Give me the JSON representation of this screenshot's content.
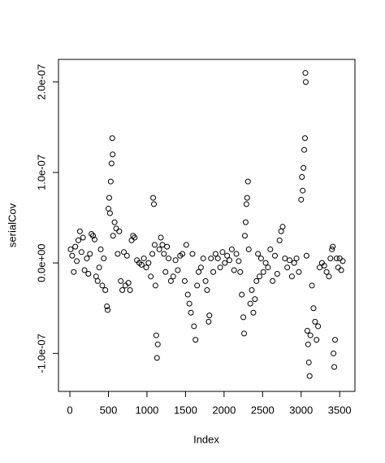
{
  "chart_data": {
    "type": "scatter",
    "x_label": "Index",
    "y_label": "serialCov",
    "xlim": [
      -148,
      3698
    ],
    "ylim": [
      -1.42e-07,
      2.25e-07
    ],
    "xticks": [
      0,
      500,
      1000,
      1500,
      2000,
      2500,
      3000,
      3500
    ],
    "yticks": [
      {
        "value": -1e-07,
        "label": "-1.0e-07"
      },
      {
        "value": 0,
        "label": "0.0e+00"
      },
      {
        "value": 1e-07,
        "label": "1.0e-07"
      },
      {
        "value": 2e-07,
        "label": "2.0e-07"
      }
    ],
    "color": "#000000",
    "x": [
      10,
      30,
      50,
      70,
      90,
      110,
      130,
      150,
      170,
      190,
      220,
      240,
      260,
      280,
      300,
      320,
      340,
      360,
      380,
      400,
      420,
      440,
      460,
      480,
      490,
      500,
      510,
      520,
      530,
      540,
      550,
      555,
      560,
      580,
      600,
      620,
      640,
      660,
      680,
      700,
      720,
      740,
      760,
      780,
      800,
      820,
      840,
      870,
      900,
      930,
      960,
      990,
      1020,
      1050,
      1070,
      1080,
      1090,
      1100,
      1110,
      1120,
      1130,
      1140,
      1160,
      1180,
      1200,
      1220,
      1240,
      1260,
      1280,
      1310,
      1340,
      1370,
      1400,
      1430,
      1460,
      1490,
      1510,
      1530,
      1550,
      1570,
      1590,
      1610,
      1630,
      1650,
      1670,
      1700,
      1730,
      1760,
      1780,
      1800,
      1810,
      1830,
      1860,
      1890,
      1920,
      1950,
      1980,
      2010,
      2040,
      2070,
      2100,
      2130,
      2160,
      2190,
      2210,
      2230,
      2250,
      2260,
      2270,
      2280,
      2290,
      2300,
      2310,
      2320,
      2340,
      2360,
      2380,
      2400,
      2420,
      2440,
      2460,
      2480,
      2510,
      2540,
      2570,
      2600,
      2630,
      2660,
      2690,
      2720,
      2740,
      2760,
      2790,
      2820,
      2850,
      2880,
      2910,
      2940,
      2970,
      3000,
      3010,
      3020,
      3030,
      3040,
      3050,
      3055,
      3060,
      3070,
      3080,
      3090,
      3100,
      3110,
      3120,
      3140,
      3160,
      3180,
      3200,
      3220,
      3240,
      3270,
      3300,
      3330,
      3360,
      3380,
      3400,
      3410,
      3420,
      3430,
      3440,
      3460,
      3480,
      3500,
      3520,
      3540
    ],
    "y": [
      1.5e-08,
      8e-09,
      -1e-08,
      1.8e-08,
      2e-09,
      2.5e-08,
      3.5e-08,
      1.2e-08,
      2.8e-08,
      -8e-09,
      5e-09,
      -1.2e-08,
      1e-08,
      3.2e-08,
      3e-08,
      2.6e-08,
      -1.5e-08,
      -2e-08,
      -5e-09,
      1.5e-08,
      -2.5e-08,
      5e-09,
      -3e-08,
      -4.8e-08,
      -5.2e-08,
      6e-08,
      7.2e-08,
      5.5e-08,
      9e-08,
      1.1e-07,
      1.38e-07,
      1.2e-07,
      3e-08,
      4.5e-08,
      3.8e-08,
      1e-08,
      3.5e-08,
      -2e-08,
      -3e-08,
      1.2e-08,
      -2.5e-08,
      8e-09,
      -2.2e-08,
      -3e-08,
      2.5e-08,
      3e-08,
      2.8e-08,
      3e-09,
      0.0,
      -2e-09,
      5e-09,
      -5e-09,
      0.0,
      -1.5e-08,
      1e-08,
      7.2e-08,
      6.5e-08,
      2e-08,
      -2.5e-08,
      -8e-08,
      -1.05e-07,
      -9e-08,
      1.5e-08,
      2.8e-08,
      2e-08,
      1e-08,
      -1e-08,
      1.8e-08,
      5e-09,
      -2e-08,
      -1.5e-08,
      3e-09,
      -8e-09,
      8e-09,
      1e-08,
      -2e-08,
      2e-08,
      -3.5e-08,
      -4.5e-08,
      -5.5e-08,
      1e-08,
      -7e-08,
      -8.5e-08,
      -2.5e-08,
      -1e-08,
      -5e-09,
      5e-09,
      -2e-08,
      -3e-08,
      -6.5e-08,
      -5.8e-08,
      5e-09,
      -1e-08,
      1e-08,
      5e-09,
      -5e-09,
      1.2e-08,
      0.0,
      8e-09,
      3e-09,
      1.5e-08,
      -8e-09,
      1e-08,
      2e-09,
      -1e-08,
      -3.5e-08,
      -6e-08,
      -7.8e-08,
      3e-08,
      4.5e-08,
      6.5e-08,
      7.2e-08,
      9e-08,
      1.5e-08,
      -4.5e-08,
      -3e-08,
      -5.5e-08,
      -4e-08,
      -2e-08,
      1e-08,
      -1.5e-08,
      5e-09,
      -1e-08,
      0.0,
      -5e-09,
      1.5e-08,
      -2e-08,
      8e-09,
      -1.2e-08,
      2.5e-08,
      3.5e-08,
      4e-08,
      5e-09,
      -5e-09,
      3e-09,
      -1.5e-08,
      0.0,
      5e-09,
      -1e-08,
      7e-08,
      9.5e-08,
      8e-08,
      1.05e-07,
      1.25e-07,
      1.38e-07,
      2.1e-07,
      2e-07,
      8e-09,
      -7.5e-08,
      -9e-08,
      -1.1e-07,
      -1.25e-07,
      -8e-08,
      -2.5e-08,
      -5e-08,
      -6.5e-08,
      -8.5e-08,
      -7e-08,
      -5e-09,
      0.0,
      -3e-09,
      -1e-08,
      -1.5e-08,
      5e-09,
      1.5e-08,
      1.8e-08,
      -1e-07,
      -1.15e-07,
      -8.5e-08,
      5e-09,
      -5e-09,
      5e-09,
      -8e-09,
      2e-09
    ]
  }
}
